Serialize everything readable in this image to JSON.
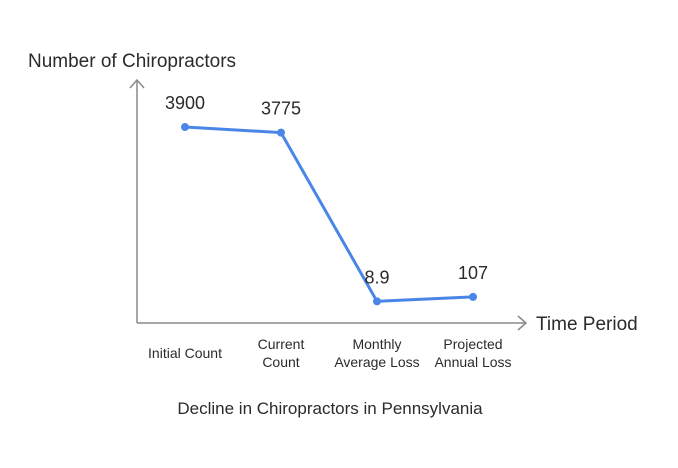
{
  "chart_data": {
    "type": "line",
    "title": "Decline in Chiropractors in Pennsylvania",
    "xlabel": "Time Period",
    "ylabel": "Number of Chiropractors",
    "categories": [
      [
        "Initial Count"
      ],
      [
        "Current",
        "Count"
      ],
      [
        "Monthly",
        "Average Loss"
      ],
      [
        "Projected",
        "Annual Loss"
      ]
    ],
    "series": [
      {
        "values": [
          3900,
          3775,
          8.9,
          107
        ],
        "data_labels": [
          "3900",
          "3775",
          "8.9",
          "107"
        ],
        "color": "#4a86e8"
      }
    ],
    "ylim": [
      -475,
      4950
    ],
    "grid": false,
    "legend": "none"
  }
}
